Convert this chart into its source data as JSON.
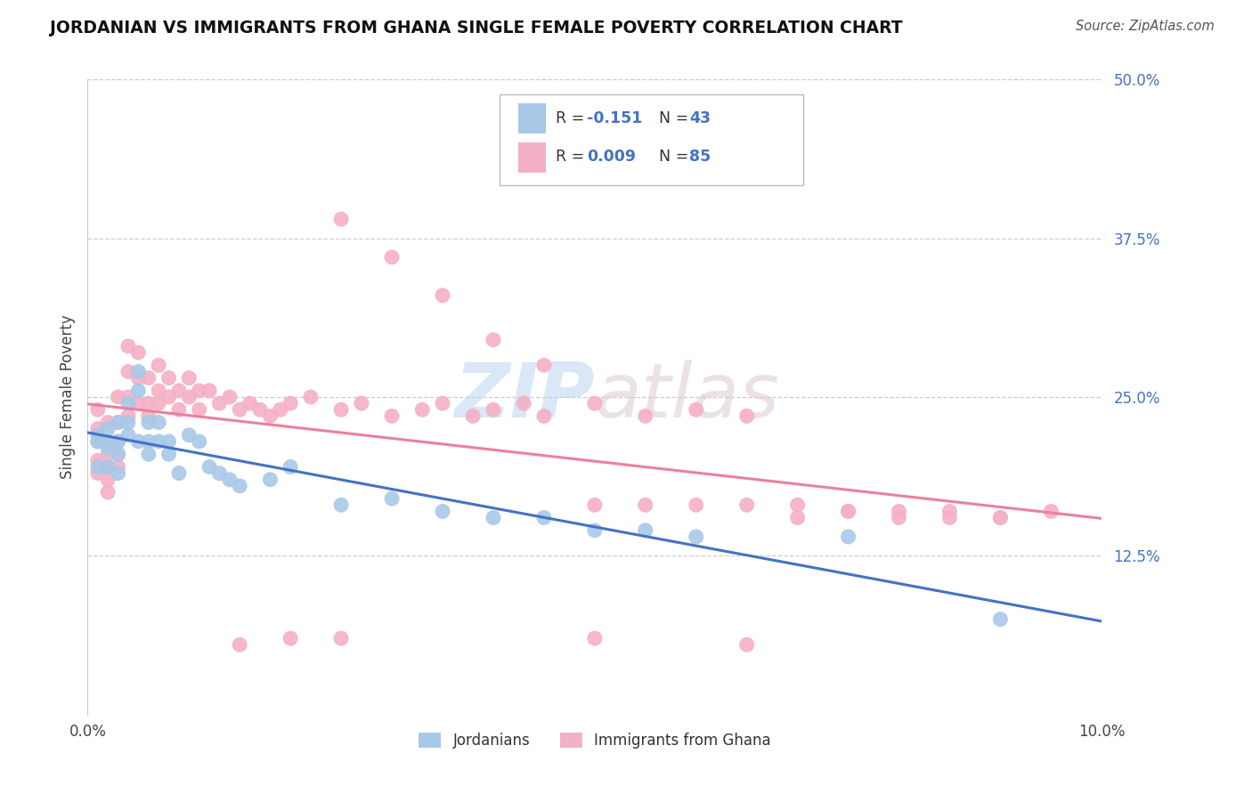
{
  "title": "JORDANIAN VS IMMIGRANTS FROM GHANA SINGLE FEMALE POVERTY CORRELATION CHART",
  "source": "Source: ZipAtlas.com",
  "ylabel": "Single Female Poverty",
  "xlim": [
    0.0,
    0.1
  ],
  "ylim": [
    0.0,
    0.5
  ],
  "ytick_labels": [
    "12.5%",
    "25.0%",
    "37.5%",
    "50.0%"
  ],
  "ytick_values": [
    0.125,
    0.25,
    0.375,
    0.5
  ],
  "color_jordanian": "#a8c8e8",
  "color_ghana": "#f4b0c4",
  "line_color_blue": "#4472c4",
  "line_color_pink": "#e8829a",
  "r_jordan": "-0.151",
  "n_jordan": "43",
  "r_ghana": "0.009",
  "n_ghana": "85",
  "label_jordan": "Jordanians",
  "label_ghana": "Immigrants from Ghana",
  "jordanian_x": [
    0.001,
    0.001,
    0.001,
    0.002,
    0.002,
    0.002,
    0.002,
    0.003,
    0.003,
    0.003,
    0.003,
    0.004,
    0.004,
    0.004,
    0.005,
    0.005,
    0.005,
    0.006,
    0.006,
    0.006,
    0.007,
    0.007,
    0.008,
    0.008,
    0.009,
    0.01,
    0.011,
    0.012,
    0.013,
    0.014,
    0.015,
    0.018,
    0.02,
    0.025,
    0.03,
    0.035,
    0.04,
    0.045,
    0.05,
    0.055,
    0.06,
    0.075,
    0.09
  ],
  "jordanian_y": [
    0.22,
    0.195,
    0.215,
    0.215,
    0.225,
    0.21,
    0.195,
    0.23,
    0.215,
    0.205,
    0.19,
    0.245,
    0.22,
    0.23,
    0.27,
    0.255,
    0.215,
    0.23,
    0.215,
    0.205,
    0.23,
    0.215,
    0.215,
    0.205,
    0.19,
    0.22,
    0.215,
    0.195,
    0.19,
    0.185,
    0.18,
    0.185,
    0.195,
    0.165,
    0.17,
    0.16,
    0.155,
    0.155,
    0.145,
    0.145,
    0.14,
    0.14,
    0.075
  ],
  "ghana_x": [
    0.001,
    0.001,
    0.001,
    0.001,
    0.001,
    0.002,
    0.002,
    0.002,
    0.002,
    0.002,
    0.002,
    0.003,
    0.003,
    0.003,
    0.003,
    0.003,
    0.004,
    0.004,
    0.004,
    0.004,
    0.005,
    0.005,
    0.005,
    0.006,
    0.006,
    0.006,
    0.007,
    0.007,
    0.007,
    0.008,
    0.008,
    0.009,
    0.009,
    0.01,
    0.01,
    0.011,
    0.011,
    0.012,
    0.013,
    0.014,
    0.015,
    0.016,
    0.017,
    0.018,
    0.019,
    0.02,
    0.022,
    0.025,
    0.027,
    0.03,
    0.033,
    0.035,
    0.038,
    0.04,
    0.043,
    0.045,
    0.05,
    0.055,
    0.06,
    0.065,
    0.07,
    0.075,
    0.08,
    0.085,
    0.09,
    0.025,
    0.03,
    0.035,
    0.04,
    0.045,
    0.05,
    0.055,
    0.06,
    0.065,
    0.07,
    0.075,
    0.08,
    0.085,
    0.09,
    0.095,
    0.015,
    0.02,
    0.025,
    0.05,
    0.065
  ],
  "ghana_y": [
    0.24,
    0.225,
    0.215,
    0.2,
    0.19,
    0.23,
    0.215,
    0.205,
    0.195,
    0.185,
    0.175,
    0.25,
    0.23,
    0.215,
    0.205,
    0.195,
    0.29,
    0.27,
    0.25,
    0.235,
    0.285,
    0.265,
    0.245,
    0.265,
    0.245,
    0.235,
    0.275,
    0.255,
    0.245,
    0.265,
    0.25,
    0.255,
    0.24,
    0.265,
    0.25,
    0.255,
    0.24,
    0.255,
    0.245,
    0.25,
    0.24,
    0.245,
    0.24,
    0.235,
    0.24,
    0.245,
    0.25,
    0.24,
    0.245,
    0.235,
    0.24,
    0.245,
    0.235,
    0.24,
    0.245,
    0.235,
    0.245,
    0.235,
    0.24,
    0.235,
    0.155,
    0.16,
    0.155,
    0.16,
    0.155,
    0.39,
    0.36,
    0.33,
    0.295,
    0.275,
    0.165,
    0.165,
    0.165,
    0.165,
    0.165,
    0.16,
    0.16,
    0.155,
    0.155,
    0.16,
    0.055,
    0.06,
    0.06,
    0.06,
    0.055
  ]
}
